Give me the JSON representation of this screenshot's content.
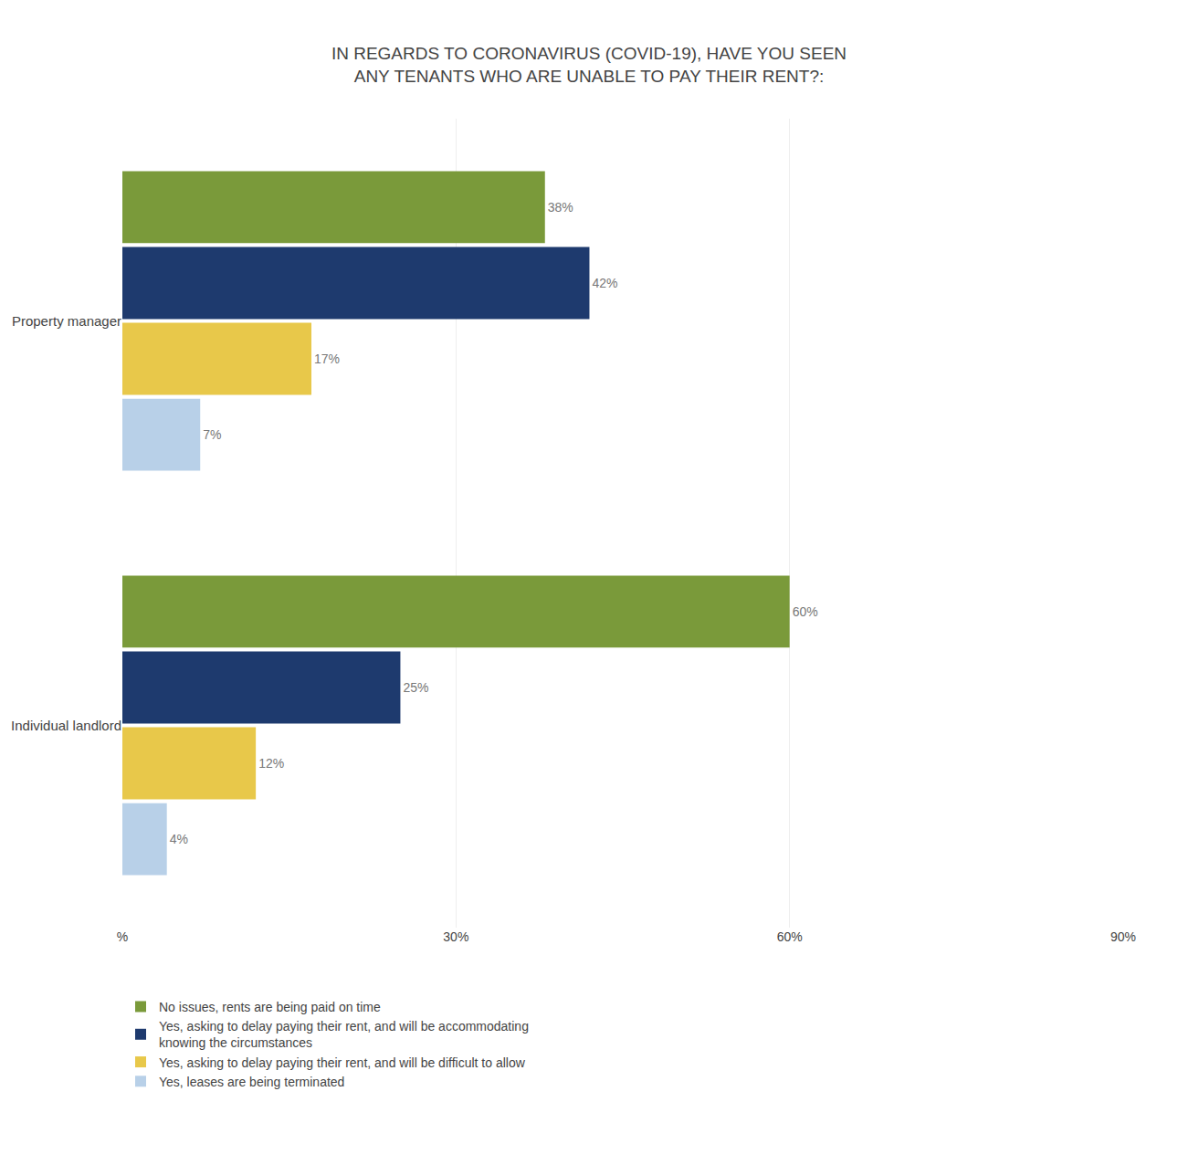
{
  "chart_data": {
    "type": "bar",
    "orientation": "horizontal",
    "title": "IN REGARDS TO CORONAVIRUS (COVID-19), HAVE YOU SEEN\nANY TENANTS WHO ARE UNABLE TO PAY THEIR RENT?:",
    "categories": [
      "Property manager",
      "Individual landlord"
    ],
    "series": [
      {
        "name": "No issues, rents are being paid on time",
        "color": "#7a9a3a",
        "values": [
          38,
          60
        ],
        "value_labels": [
          "38%",
          "60%"
        ]
      },
      {
        "name": "Yes, asking to delay paying their rent, and will be accommodating\nknowing the circumstances",
        "color": "#1e3a6e",
        "values": [
          42,
          25
        ],
        "value_labels": [
          "42%",
          "25%"
        ]
      },
      {
        "name": "Yes, asking to delay paying their rent, and will be difficult to allow",
        "color": "#e8c84a",
        "values": [
          17,
          12
        ],
        "value_labels": [
          "17%",
          "12%"
        ]
      },
      {
        "name": "Yes, leases are being terminated",
        "color": "#b8d0e8",
        "values": [
          7,
          4
        ],
        "value_labels": [
          "7%",
          "4%"
        ]
      }
    ],
    "xlim": [
      0,
      90
    ],
    "xticks": [
      {
        "value": 0,
        "label": "%"
      },
      {
        "value": 30,
        "label": "30%"
      },
      {
        "value": 60,
        "label": "60%"
      },
      {
        "value": 90,
        "label": "90%"
      }
    ],
    "grid": true,
    "legend": "bottom",
    "data_labels": true
  }
}
